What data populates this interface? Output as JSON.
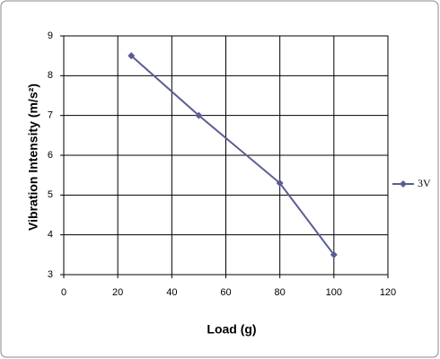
{
  "chart_data": {
    "type": "line",
    "x_label": "Load (g)",
    "y_label": "Vibration Intensity (m/s²)",
    "x": [
      25,
      50,
      80,
      100
    ],
    "series": [
      {
        "name": "3V",
        "color": "#5c5c94",
        "values": [
          8.5,
          7,
          5.3,
          3.5
        ]
      }
    ],
    "xlim": [
      0,
      120
    ],
    "xticks": [
      0,
      20,
      40,
      60,
      80,
      100,
      120
    ],
    "ylim": [
      3,
      9
    ],
    "yticks": [
      3,
      4,
      5,
      6,
      7,
      8,
      9
    ],
    "grid": true,
    "legend": "right"
  }
}
